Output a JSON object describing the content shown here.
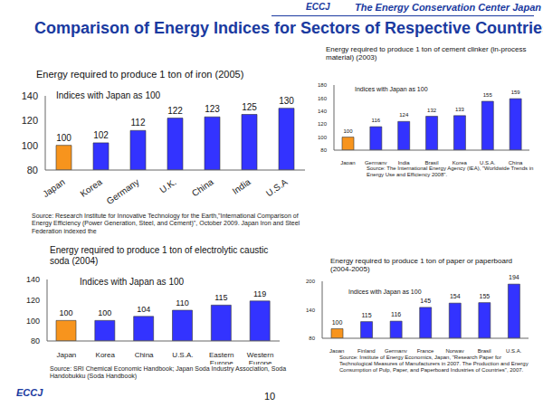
{
  "header": {
    "logo": "ECCJ",
    "organization": "The Energy Conservation Center Japan",
    "title": "Comparison of Energy Indices for Sectors of Respective Countries",
    "page": "10",
    "footer": "ECCJ"
  },
  "chart_data": [
    {
      "type": "bar",
      "title": "Energy required to produce 1 ton of iron (2005)",
      "subtitle": "Indices with Japan as 100",
      "categories": [
        "Japan",
        "Korea",
        "Germany",
        "U.K.",
        "China",
        "India",
        "U.S.A"
      ],
      "values": [
        100,
        102,
        112,
        122,
        123,
        125,
        130
      ],
      "colors": [
        "#f7941d",
        "#3333ff",
        "#3333ff",
        "#3333ff",
        "#3333ff",
        "#3333ff",
        "#3333ff"
      ],
      "ylim": [
        80,
        140
      ],
      "yticks": [
        80,
        100,
        120,
        140
      ],
      "data_labels": true,
      "annotations": [
        "Source: Research Institute for Innovative Technology for the Earth,\"International Comparison of Energy Efficiency (Power Generation, Steel, and Cement)\", October 2009. Japan Iron and Steel Federation indexed the"
      ]
    },
    {
      "type": "bar",
      "title": "Energy required to produce 1 ton of cement clinker (in-process material) (2003)",
      "subtitle": "Indices with Japan as 100",
      "categories": [
        "Japan",
        "Germany",
        "India",
        "Brasil",
        "Korea",
        "U.S.A.",
        "China"
      ],
      "values": [
        100,
        116,
        124,
        132,
        133,
        155,
        159
      ],
      "colors": [
        "#f7941d",
        "#3333ff",
        "#3333ff",
        "#3333ff",
        "#3333ff",
        "#3333ff",
        "#3333ff"
      ],
      "ylim": [
        80,
        180
      ],
      "yticks": [
        80,
        100,
        120,
        140,
        160,
        180
      ],
      "data_labels": true,
      "annotations": [
        "Source: The International Energy Agency (IEA), \"Worldwide Trends in Energy Use and Efficiency 2008\"."
      ]
    },
    {
      "type": "bar",
      "title": "Energy required to produce 1 ton of electrolytic caustic soda (2004)",
      "subtitle": "Indices with Japan as 100",
      "categories": [
        "Japan",
        "Korea",
        "China",
        "U.S.A.",
        "Eastern Europe",
        "Western Europe"
      ],
      "values": [
        100,
        100,
        104,
        110,
        115,
        119
      ],
      "colors": [
        "#f7941d",
        "#3333ff",
        "#3333ff",
        "#3333ff",
        "#3333ff",
        "#3333ff"
      ],
      "ylim": [
        80,
        140
      ],
      "yticks": [
        80,
        100,
        120,
        140
      ],
      "data_labels": true,
      "annotations": [
        "Source: SRI Chemical Economic Handbook; Japan Soda Industry Association, Soda Handobukku (Soda Handbook)"
      ]
    },
    {
      "type": "bar",
      "title": "Energy required to produce 1 ton of paper or paperboard (2004-2005)",
      "subtitle": "Indices with Japan as 100",
      "categories": [
        "Japan",
        "Finland",
        "Germany",
        "France",
        "Norway",
        "Brasil",
        "U.S.A."
      ],
      "values": [
        100,
        115,
        116,
        145,
        154,
        155,
        194
      ],
      "colors": [
        "#f7941d",
        "#3333ff",
        "#3333ff",
        "#3333ff",
        "#3333ff",
        "#3333ff",
        "#3333ff"
      ],
      "ylim": [
        80,
        200
      ],
      "yticks": [
        80,
        140,
        200
      ],
      "data_labels": true,
      "annotations": [
        "Source: Institute of Energy Economics, Japan, \"Research Paper for Technological Measures of Manufacturers in 2007. The Production and Energy Consumption of Pulp, Paper, and Paperboard Industries of Countries\", 2007."
      ]
    }
  ]
}
